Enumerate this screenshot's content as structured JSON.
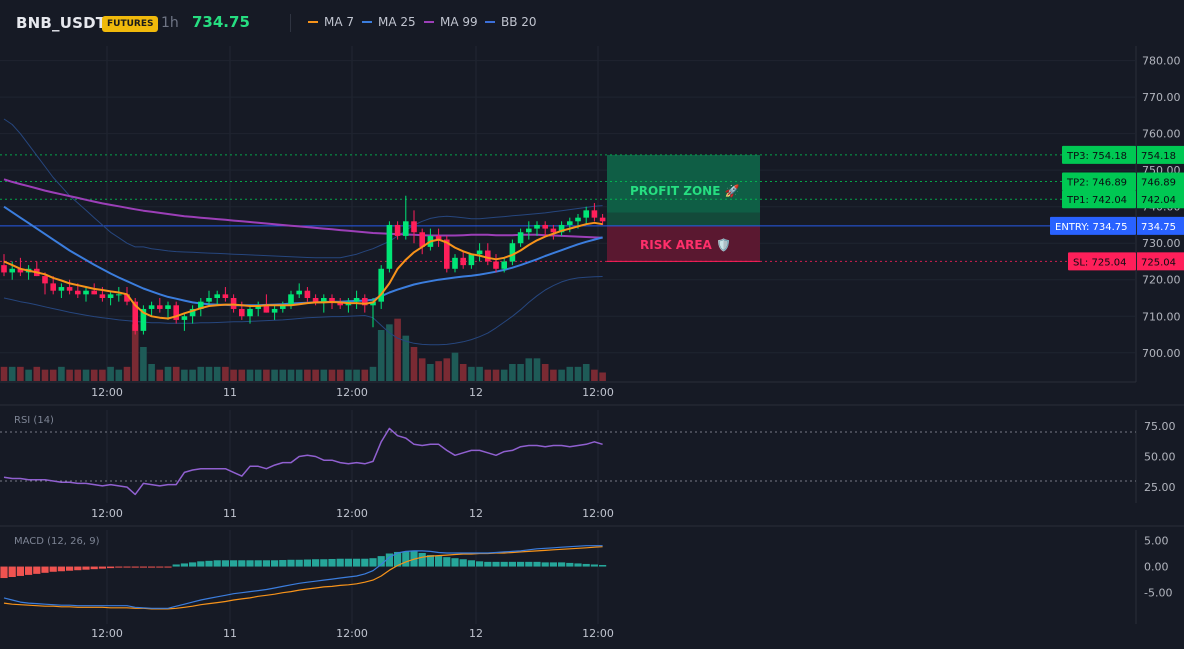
{
  "header": {
    "symbol": "BNB_USDT",
    "badge": "FUTURES",
    "interval": "1h",
    "price": "734.75",
    "legend": [
      {
        "label": "MA 7",
        "color": "#f7931a"
      },
      {
        "label": "MA 25",
        "color": "#3b7ddd"
      },
      {
        "label": "MA 99",
        "color": "#9c3fb8"
      },
      {
        "label": "BB 20",
        "color": "#2a4a8a"
      }
    ]
  },
  "colors": {
    "up": "#26a69a",
    "down": "#ef5350",
    "up_bright": "#00e676",
    "down_bright": "#ff1f5a",
    "ma7": "#f7931a",
    "ma25": "#3b7ddd",
    "ma99": "#9c3fb8",
    "bb": "#2a4a8a",
    "rsi": "#9060d0",
    "macd": "#3b7ddd",
    "signal": "#f7931a",
    "tp": "#00c853",
    "entry": "#2962ff",
    "sl": "#ff1f5a"
  },
  "x_labels": [
    "12:00",
    "11",
    "12:00",
    "12",
    "12:00"
  ],
  "zones": {
    "profit": "PROFIT ZONE 🚀",
    "risk": "RISK AREA 🛡️"
  },
  "levels": [
    {
      "id": "tp3",
      "tag": "TP3: 754.18",
      "price": "754.18",
      "value": 754.18
    },
    {
      "id": "tp2",
      "tag": "TP2: 746.89",
      "price": "746.89",
      "value": 746.89
    },
    {
      "id": "tp1",
      "tag": "TP1: 742.04",
      "price": "742.04",
      "value": 742.04
    },
    {
      "id": "entry",
      "tag": "ENTRY: 734.75",
      "price": "734.75",
      "value": 734.75
    },
    {
      "id": "sl",
      "tag": "SL: 725.04",
      "price": "725.04",
      "value": 725.04
    }
  ],
  "chart_data": [
    {
      "type": "candlestick",
      "title": "BNB_USDT",
      "interval": "1h",
      "yticks": [
        "780.00",
        "770.00",
        "760.00",
        "750.00",
        "740.00",
        "730.00",
        "720.00",
        "710.00",
        "700.00"
      ],
      "ylim": [
        692,
        784
      ],
      "ohlc": [
        [
          724,
          727,
          721,
          722
        ],
        [
          722,
          725,
          720,
          723
        ],
        [
          723,
          726,
          721,
          722
        ],
        [
          722,
          724,
          720,
          723
        ],
        [
          723,
          725,
          721,
          721
        ],
        [
          721,
          722,
          716,
          719
        ],
        [
          719,
          721,
          716,
          717
        ],
        [
          717,
          719,
          715,
          718
        ],
        [
          718,
          720,
          716,
          717
        ],
        [
          717,
          719,
          715,
          716
        ],
        [
          716,
          718,
          714,
          717
        ],
        [
          717,
          719,
          716,
          716
        ],
        [
          716,
          718,
          714,
          715
        ],
        [
          715,
          717,
          713,
          716
        ],
        [
          716,
          718,
          714,
          716
        ],
        [
          716,
          718,
          713,
          714
        ],
        [
          714,
          715,
          705,
          706
        ],
        [
          706,
          713,
          705,
          712
        ],
        [
          712,
          714,
          710,
          713
        ],
        [
          713,
          715,
          711,
          712
        ],
        [
          712,
          714,
          709,
          713
        ],
        [
          713,
          714,
          708,
          709
        ],
        [
          709,
          711,
          706,
          710
        ],
        [
          710,
          713,
          708,
          712
        ],
        [
          712,
          715,
          710,
          714
        ],
        [
          714,
          717,
          713,
          715
        ],
        [
          715,
          717,
          713,
          716
        ],
        [
          716,
          718,
          714,
          715
        ],
        [
          715,
          716,
          711,
          712
        ],
        [
          712,
          714,
          709,
          710
        ],
        [
          710,
          713,
          708,
          712
        ],
        [
          712,
          714,
          710,
          713
        ],
        [
          713,
          716,
          711,
          711
        ],
        [
          711,
          713,
          709,
          712
        ],
        [
          712,
          714,
          711,
          713
        ],
        [
          713,
          717,
          712,
          716
        ],
        [
          716,
          719,
          715,
          717
        ],
        [
          717,
          718,
          714,
          715
        ],
        [
          715,
          716,
          713,
          714
        ],
        [
          714,
          716,
          711,
          715
        ],
        [
          715,
          716,
          712,
          714
        ],
        [
          714,
          715,
          712,
          713
        ],
        [
          713,
          715,
          711,
          714
        ],
        [
          714,
          717,
          712,
          715
        ],
        [
          715,
          716,
          711,
          713
        ],
        [
          713,
          715,
          707,
          714
        ],
        [
          714,
          724,
          712,
          723
        ],
        [
          723,
          736,
          722,
          735
        ],
        [
          735,
          736,
          731,
          732
        ],
        [
          732,
          743,
          731,
          736
        ],
        [
          736,
          739,
          730,
          733
        ],
        [
          733,
          734,
          727,
          729
        ],
        [
          729,
          734,
          728,
          732
        ],
        [
          732,
          734,
          729,
          731
        ],
        [
          731,
          732,
          722,
          723
        ],
        [
          723,
          727,
          722,
          726
        ],
        [
          726,
          728,
          723,
          724
        ],
        [
          724,
          727,
          723,
          727
        ],
        [
          727,
          730,
          725,
          728
        ],
        [
          728,
          730,
          724,
          725
        ],
        [
          725,
          727,
          722,
          723
        ],
        [
          723,
          726,
          722,
          725
        ],
        [
          725,
          731,
          724,
          730
        ],
        [
          730,
          734,
          729,
          733
        ],
        [
          733,
          736,
          731,
          734
        ],
        [
          734,
          736,
          732,
          735
        ],
        [
          735,
          736,
          732,
          734
        ],
        [
          734,
          735,
          731,
          733
        ],
        [
          733,
          736,
          732,
          735
        ],
        [
          735,
          737,
          733,
          736
        ],
        [
          736,
          738,
          734,
          737
        ],
        [
          737,
          740,
          735,
          739
        ],
        [
          739,
          741,
          736,
          737
        ],
        [
          737,
          738,
          735,
          736
        ]
      ],
      "volume": [
        5,
        5,
        5,
        4,
        5,
        4,
        4,
        5,
        4,
        4,
        4,
        4,
        4,
        5,
        4,
        5,
        20,
        12,
        6,
        4,
        5,
        5,
        4,
        4,
        5,
        5,
        5,
        5,
        4,
        4,
        4,
        4,
        4,
        4,
        4,
        4,
        4,
        4,
        4,
        4,
        4,
        4,
        4,
        4,
        4,
        5,
        18,
        20,
        22,
        16,
        12,
        8,
        6,
        7,
        8,
        10,
        6,
        5,
        5,
        4,
        4,
        4,
        6,
        6,
        8,
        8,
        6,
        4,
        4,
        5,
        5,
        6,
        4,
        3
      ],
      "ma7": [
        725,
        724,
        723,
        722.5,
        722,
        721.5,
        720.5,
        719.8,
        719,
        718.5,
        718,
        717.5,
        717.2,
        716.8,
        716.5,
        716,
        713,
        711,
        710,
        709.6,
        709.4,
        710,
        710.8,
        711.5,
        712.2,
        712.8,
        713,
        713.2,
        713.2,
        713,
        712.8,
        712.8,
        713,
        713,
        713,
        713,
        713.3,
        713.6,
        713.8,
        713.8,
        713.9,
        713.8,
        713.6,
        713.6,
        713.4,
        713.8,
        716,
        719,
        723,
        725.5,
        727.5,
        729,
        730.5,
        731,
        730.2,
        728.8,
        727.8,
        727,
        726.6,
        726,
        725.6,
        726,
        726.8,
        728,
        729.5,
        730.8,
        731.8,
        732.6,
        733.4,
        734,
        734.6,
        735.2,
        735.6,
        735.2
      ],
      "ma25": [
        740,
        738.5,
        737,
        735.5,
        734,
        732.5,
        731,
        729.5,
        728,
        726.7,
        725.4,
        724.1,
        722.9,
        721.7,
        720.6,
        719.6,
        718.6,
        717.6,
        716.8,
        716,
        715.3,
        714.8,
        714.3,
        713.8,
        713.5,
        713.3,
        713.2,
        713.1,
        713,
        713,
        713,
        713,
        713.1,
        713.2,
        713.3,
        713.5,
        713.6,
        713.7,
        713.8,
        713.9,
        714,
        714,
        714.1,
        714.2,
        714.3,
        714.5,
        715.5,
        716.5,
        717.3,
        718,
        718.7,
        719.2,
        719.6,
        720,
        720.3,
        720.6,
        720.9,
        721.1,
        721.4,
        721.8,
        722.2,
        722.7,
        723.3,
        724,
        724.8,
        725.6,
        726.5,
        727.3,
        728.1,
        728.9,
        729.7,
        730.4,
        731,
        731.6
      ],
      "ma99": [
        747.5,
        746.8,
        746.2,
        745.6,
        745,
        744.4,
        743.9,
        743.4,
        742.9,
        742.4,
        741.9,
        741.4,
        740.9,
        740.5,
        740.1,
        739.7,
        739.3,
        738.9,
        738.6,
        738.3,
        738,
        737.7,
        737.4,
        737.2,
        737,
        736.8,
        736.6,
        736.4,
        736.2,
        736,
        735.8,
        735.6,
        735.4,
        735.2,
        735,
        734.8,
        734.6,
        734.4,
        734.2,
        734,
        733.8,
        733.6,
        733.4,
        733.2,
        733,
        732.8,
        732.7,
        732.6,
        732.5,
        732.4,
        732.3,
        732.2,
        732.1,
        732.1,
        732.1,
        732.1,
        732.2,
        732.3,
        732.3,
        732.3,
        732.2,
        732.2,
        732.2,
        732.3,
        732.3,
        732.3,
        732.2,
        732.1,
        732,
        731.9,
        731.8,
        731.7,
        731.6,
        731.5
      ],
      "bb_upper": [
        764,
        762.5,
        760,
        757,
        754,
        751,
        748,
        745.5,
        743,
        741,
        739,
        737,
        735,
        733,
        731.5,
        730,
        729,
        729,
        728.5,
        728.2,
        727.9,
        727.7,
        727.6,
        727.5,
        727.4,
        727.3,
        727.2,
        727.1,
        727,
        726.9,
        726.8,
        726.7,
        726.6,
        726.5,
        726.4,
        726.3,
        726.2,
        726.1,
        726,
        726,
        726,
        726,
        726.5,
        727,
        727.8,
        728.5,
        729.5,
        730.5,
        732,
        733.5,
        735,
        736,
        736.8,
        737.2,
        737.4,
        737.2,
        737,
        736.7,
        736.7,
        736.9,
        737.1,
        737.3,
        737.5,
        737.7,
        737.9,
        738.1,
        738.3,
        738.6,
        738.9,
        739.2,
        739.5,
        739.8,
        740.1,
        740.3
      ],
      "bb_lower": [
        715,
        714.5,
        714,
        713.6,
        713.1,
        712.6,
        712.1,
        711.6,
        711.1,
        710.7,
        710.3,
        709.9,
        709.6,
        709.3,
        709,
        708.8,
        708.6,
        708.4,
        708.2,
        708.2,
        708.1,
        708.1,
        708.1,
        708.1,
        708.2,
        708.2,
        708.3,
        708.4,
        708.5,
        708.5,
        708.6,
        708.7,
        708.8,
        708.9,
        709,
        709.2,
        709.4,
        709.6,
        709.7,
        709.8,
        709.9,
        709.9,
        710,
        710.1,
        710.2,
        709.6,
        707.5,
        705.5,
        704,
        703.2,
        702.6,
        702.3,
        702.2,
        702.2,
        702.3,
        702.6,
        703,
        703.6,
        704.4,
        705.4,
        706.8,
        708.4,
        710,
        711.8,
        713.8,
        715.6,
        717.2,
        718.4,
        719.4,
        720.1,
        720.5,
        720.7,
        720.8,
        720.9
      ],
      "yaxis_label": "",
      "xlabel": ""
    },
    {
      "type": "line",
      "title": "RSI (14)",
      "yticks": [
        "75.00",
        "50.00",
        "25.00"
      ],
      "ylim": [
        12,
        88
      ],
      "overbought": 70,
      "oversold": 30,
      "values": [
        33,
        32,
        32,
        31,
        31,
        31,
        30,
        29,
        29,
        28,
        28,
        27,
        26,
        27,
        26,
        25,
        19,
        28,
        27,
        26,
        27,
        27,
        37,
        39,
        40,
        40,
        40,
        40,
        37,
        34,
        42,
        42,
        40,
        43,
        45,
        45,
        50,
        51,
        50,
        47,
        47,
        45,
        44,
        45,
        44,
        46,
        62,
        73,
        67,
        65,
        60,
        59,
        60,
        60,
        55,
        51,
        53,
        55,
        55,
        53,
        51,
        54,
        55,
        58,
        59,
        59,
        58,
        59,
        59,
        58,
        59,
        60,
        62,
        60
      ]
    },
    {
      "type": "bar+line",
      "title": "MACD (12, 26, 9)",
      "yticks": [
        "5.00",
        "0.00",
        "-5.00"
      ],
      "ylim": [
        -11,
        7
      ],
      "histogram": [
        -2.2,
        -2.0,
        -1.8,
        -1.6,
        -1.4,
        -1.2,
        -1.0,
        -0.9,
        -0.8,
        -0.7,
        -0.6,
        -0.5,
        -0.4,
        -0.3,
        -0.2,
        -0.1,
        -0.2,
        -0.2,
        -0.2,
        -0.15,
        -0.1,
        0.4,
        0.6,
        0.8,
        1.0,
        1.1,
        1.2,
        1.2,
        1.2,
        1.2,
        1.2,
        1.2,
        1.2,
        1.2,
        1.25,
        1.3,
        1.3,
        1.35,
        1.4,
        1.4,
        1.45,
        1.5,
        1.5,
        1.5,
        1.5,
        1.6,
        2.0,
        2.5,
        2.8,
        2.9,
        2.9,
        2.6,
        2.2,
        2.0,
        1.8,
        1.6,
        1.4,
        1.2,
        1.0,
        0.9,
        0.9,
        0.9,
        0.9,
        0.9,
        0.9,
        0.9,
        0.8,
        0.8,
        0.8,
        0.7,
        0.6,
        0.5,
        0.4,
        0.3
      ],
      "macd": [
        -6.0,
        -6.4,
        -6.8,
        -7.0,
        -7.1,
        -7.2,
        -7.3,
        -7.4,
        -7.4,
        -7.5,
        -7.5,
        -7.5,
        -7.5,
        -7.5,
        -7.5,
        -7.5,
        -7.8,
        -7.9,
        -8.0,
        -8.0,
        -8.0,
        -7.6,
        -7.2,
        -6.8,
        -6.4,
        -6.1,
        -5.8,
        -5.5,
        -5.2,
        -5.0,
        -4.8,
        -4.6,
        -4.4,
        -4.1,
        -3.8,
        -3.5,
        -3.2,
        -3.0,
        -2.8,
        -2.6,
        -2.4,
        -2.2,
        -2.0,
        -1.8,
        -1.4,
        -0.8,
        0.4,
        1.8,
        2.6,
        2.9,
        3.0,
        3.0,
        2.9,
        2.7,
        2.6,
        2.6,
        2.6,
        2.6,
        2.6,
        2.6,
        2.7,
        2.8,
        2.9,
        3.0,
        3.2,
        3.4,
        3.5,
        3.6,
        3.7,
        3.8,
        3.9,
        4.0,
        4.0,
        4.0
      ],
      "signal": [
        -7.0,
        -7.2,
        -7.3,
        -7.4,
        -7.5,
        -7.6,
        -7.6,
        -7.7,
        -7.7,
        -7.8,
        -7.8,
        -7.8,
        -7.8,
        -7.9,
        -7.9,
        -7.9,
        -8.0,
        -8.0,
        -8.1,
        -8.1,
        -8.1,
        -8.0,
        -7.8,
        -7.6,
        -7.3,
        -7.1,
        -6.9,
        -6.7,
        -6.4,
        -6.2,
        -6.0,
        -5.7,
        -5.5,
        -5.3,
        -5.0,
        -4.8,
        -4.5,
        -4.3,
        -4.1,
        -3.9,
        -3.8,
        -3.6,
        -3.5,
        -3.3,
        -3.0,
        -2.6,
        -1.8,
        -0.7,
        0.2,
        0.9,
        1.4,
        1.8,
        2.0,
        2.1,
        2.2,
        2.3,
        2.4,
        2.4,
        2.5,
        2.5,
        2.6,
        2.6,
        2.7,
        2.8,
        2.9,
        3.0,
        3.1,
        3.2,
        3.3,
        3.4,
        3.5,
        3.6,
        3.7,
        3.8
      ]
    }
  ]
}
